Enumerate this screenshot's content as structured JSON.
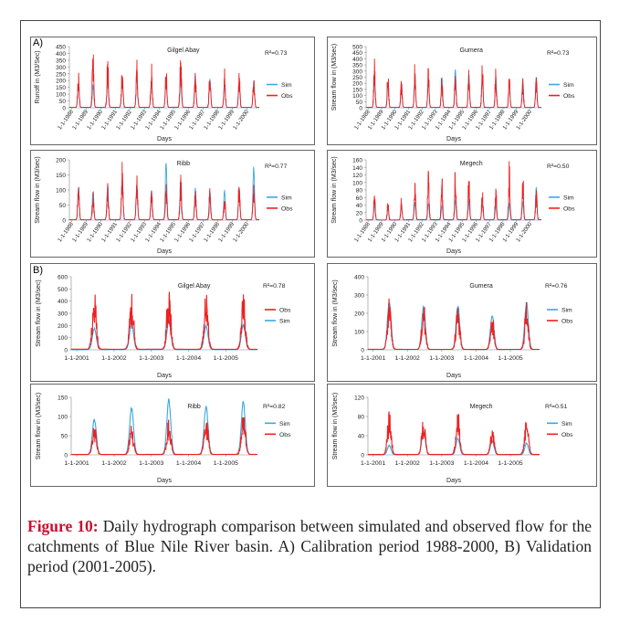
{
  "figure": {
    "caption_label": "Figure 10:",
    "caption_text": " Daily hydrograph comparison between simulated and observed flow for the catchments of Blue Nile River basin. A) Calibration period 1988-2000, B) Validation period (2001-2005).",
    "section_a": "A)",
    "section_b": "B)",
    "colors": {
      "sim": "#3aa8dc",
      "obs": "#ee2020"
    }
  },
  "chart_data": [
    {
      "type": "line",
      "section": "A",
      "title": "Gilgel Abay",
      "r2": "R²=0.73",
      "ylabel": "Runoff in (M3/Sec)",
      "xlabel": "Days",
      "yticks": [
        "0",
        "50",
        "100",
        "150",
        "200",
        "250",
        "300",
        "350",
        "400",
        "450"
      ],
      "ylim": [
        0,
        450
      ],
      "xticks": [
        "1-1-1988",
        "1-1-1989",
        "1-1-1990",
        "1-1-1991",
        "1-1-1992",
        "1-1-1993",
        "1-1-1994",
        "1-1-1995",
        "1-1-1996",
        "1-1-1997",
        "1-1-1998",
        "1-1-1999",
        "1-1-2000"
      ],
      "xtick_rotate": true,
      "legend": [
        "Sim",
        "Obs"
      ],
      "series": [
        {
          "name": "Sim",
          "peaks": [
            180,
            170,
            200,
            220,
            230,
            200,
            210,
            200,
            240,
            220,
            180,
            190,
            200
          ]
        },
        {
          "name": "Obs",
          "peaks": [
            270,
            430,
            380,
            350,
            340,
            310,
            300,
            440,
            330,
            300,
            280,
            270,
            260
          ]
        }
      ]
    },
    {
      "type": "line",
      "section": "A",
      "title": "Gumera",
      "r2": "R²=0.73",
      "ylabel": "Stream flow in (M3/sec)",
      "xlabel": "Days",
      "yticks": [
        "0",
        "50",
        "100",
        "150",
        "200",
        "250",
        "300",
        "350",
        "400",
        "450",
        "500"
      ],
      "ylim": [
        0,
        500
      ],
      "xticks": [
        "1-1-1988",
        "1-1-1989",
        "1-1-1990",
        "1-1-1991",
        "1-1-1992",
        "1-1-1993",
        "1-1-1994",
        "1-1-1995",
        "1-1-1996",
        "1-1-1997",
        "1-1-1998",
        "1-1-1999",
        "1-1-2000"
      ],
      "xtick_rotate": true,
      "legend": [
        "Sim",
        "Obs"
      ],
      "series": [
        {
          "name": "Sim",
          "peaks": [
            230,
            200,
            210,
            260,
            240,
            250,
            320,
            280,
            250,
            260,
            220,
            230,
            260
          ]
        },
        {
          "name": "Obs",
          "peaks": [
            390,
            300,
            280,
            340,
            330,
            280,
            300,
            330,
            370,
            290,
            280,
            240,
            290
          ]
        }
      ]
    },
    {
      "type": "line",
      "section": "A",
      "title": "Ribb",
      "r2": "R²=0.77",
      "ylabel": "Stream flow in (M3/sec)",
      "xlabel": "Days",
      "yticks": [
        "0",
        "50",
        "100",
        "150",
        "200"
      ],
      "ylim": [
        0,
        200
      ],
      "xticks": [
        "1-1-1988",
        "1-1-1989",
        "1-1-1990",
        "1-1-1991",
        "1-1-1992",
        "1-1-1993",
        "1-1-1994",
        "1-1-1995",
        "1-1-1996",
        "1-1-1997",
        "1-1-1998",
        "1-1-1999",
        "1-1-2000"
      ],
      "xtick_rotate": true,
      "legend": [
        "Sim",
        "Obs"
      ],
      "series": [
        {
          "name": "Sim",
          "peaks": [
            110,
            100,
            120,
            140,
            120,
            100,
            195,
            140,
            110,
            100,
            100,
            110,
            180
          ]
        },
        {
          "name": "Obs",
          "peaks": [
            120,
            100,
            130,
            190,
            165,
            130,
            135,
            145,
            110,
            105,
            95,
            130,
            150
          ]
        }
      ]
    },
    {
      "type": "line",
      "section": "A",
      "title": "Megech",
      "r2": "R²=0.50",
      "ylabel": "Stream flow in (M3/sec)",
      "xlabel": "Days",
      "yticks": [
        "0",
        "20",
        "40",
        "60",
        "80",
        "100",
        "120",
        "140",
        "160"
      ],
      "ylim": [
        0,
        160
      ],
      "xticks": [
        "1-1-1988",
        "1-1-1989",
        "1-1-1990",
        "1-1-1991",
        "1-1-1992",
        "1-1-1993",
        "1-1-1994",
        "1-1-1995",
        "1-1-1996",
        "1-1-1997",
        "1-1-1998",
        "1-1-1999",
        "1-1-2000"
      ],
      "xtick_rotate": true,
      "legend": [
        "Sim",
        "Obs"
      ],
      "series": [
        {
          "name": "Sim",
          "peaks": [
            40,
            35,
            45,
            50,
            45,
            40,
            55,
            50,
            45,
            40,
            45,
            50,
            90
          ]
        },
        {
          "name": "Obs",
          "peaks": [
            75,
            55,
            60,
            135,
            135,
            125,
            140,
            140,
            90,
            95,
            150,
            135,
            90
          ]
        }
      ]
    },
    {
      "type": "line",
      "section": "B",
      "title": "Gilgel Abay",
      "r2": "R²=0.78",
      "ylabel": "Stream flow in (M3/sec)",
      "xlabel": "Days",
      "yticks": [
        "0",
        "100",
        "200",
        "300",
        "400",
        "500",
        "600"
      ],
      "ylim": [
        0,
        600
      ],
      "xticks": [
        "1-1-2001",
        "1-1-2002",
        "1-1-2003",
        "1-1-2004",
        "1-1-2005"
      ],
      "xtick_rotate": false,
      "legend": [
        "Obs",
        "Sim"
      ],
      "series": [
        {
          "name": "Sim",
          "peaks": [
            180,
            220,
            240,
            200,
            210
          ]
        },
        {
          "name": "Obs",
          "peaks": [
            490,
            480,
            500,
            480,
            450
          ]
        }
      ]
    },
    {
      "type": "line",
      "section": "B",
      "title": "Gumera",
      "r2": "R²=0.76",
      "ylabel": "Stream flow in (M3/sec)",
      "xlabel": "Days",
      "yticks": [
        "0",
        "100",
        "200",
        "300",
        "400"
      ],
      "ylim": [
        0,
        400
      ],
      "xticks": [
        "1-1-2001",
        "1-1-2002",
        "1-1-2003",
        "1-1-2004",
        "1-1-2005"
      ],
      "xtick_rotate": false,
      "legend": [
        "Sim",
        "Obs"
      ],
      "series": [
        {
          "name": "Sim",
          "peaks": [
            270,
            240,
            250,
            190,
            260
          ]
        },
        {
          "name": "Obs",
          "peaks": [
            295,
            235,
            260,
            180,
            240
          ]
        }
      ]
    },
    {
      "type": "line",
      "section": "B",
      "title": "Ribb",
      "r2": "R²=0.82",
      "ylabel": "Stream flow in (M3/sec)",
      "xlabel": "Days",
      "yticks": [
        "0",
        "50",
        "100",
        "150"
      ],
      "ylim": [
        0,
        150
      ],
      "xticks": [
        "1-1-2001",
        "1-1-2002",
        "1-1-2003",
        "1-1-2004",
        "1-1-2005"
      ],
      "xtick_rotate": false,
      "legend": [
        "Sim",
        "Obs"
      ],
      "series": [
        {
          "name": "Sim",
          "peaks": [
            95,
            125,
            145,
            130,
            140
          ]
        },
        {
          "name": "Obs",
          "peaks": [
            85,
            85,
            95,
            110,
            115
          ]
        }
      ]
    },
    {
      "type": "line",
      "section": "B",
      "title": "Megech",
      "r2": "R²=0.51",
      "ylabel": "Stream flow in (M3/sec)",
      "xlabel": "Days",
      "yticks": [
        "0",
        "40",
        "80",
        "120"
      ],
      "ylim": [
        0,
        120
      ],
      "xticks": [
        "1-1-2001",
        "1-1-2002",
        "1-1-2003",
        "1-1-2004",
        "1-1-2005"
      ],
      "xtick_rotate": false,
      "legend": [
        "Sim",
        "Obs"
      ],
      "series": [
        {
          "name": "Sim",
          "peaks": [
            20,
            50,
            35,
            30,
            25
          ]
        },
        {
          "name": "Obs",
          "peaks": [
            85,
            75,
            95,
            60,
            90
          ]
        }
      ]
    }
  ]
}
